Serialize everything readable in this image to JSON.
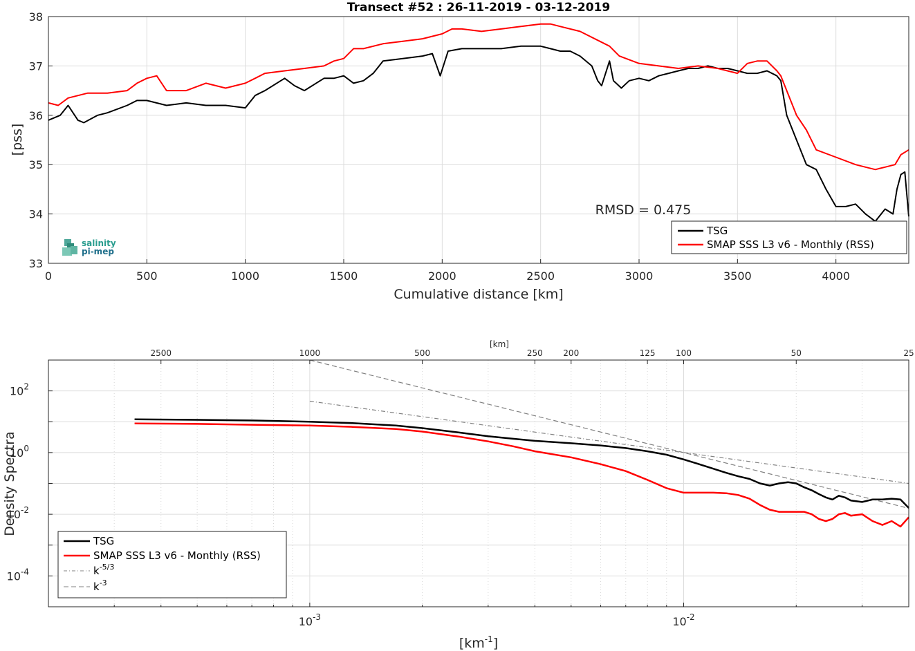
{
  "chart_data": [
    {
      "type": "line",
      "title": "Transect #52 : 26-11-2019 - 03-12-2019",
      "xlabel": "Cumulative distance [km]",
      "ylabel": "[pss]",
      "xlim": [
        0,
        4370
      ],
      "ylim": [
        33,
        38
      ],
      "xticks": [
        "0",
        "500",
        "1000",
        "1500",
        "2000",
        "2500",
        "3000",
        "3500",
        "4000"
      ],
      "yticks": [
        "33",
        "34",
        "35",
        "36",
        "37",
        "38"
      ],
      "grid": true,
      "legend_position": "bottom-right",
      "annotation": "RMSD = 0.475",
      "logo": {
        "line1": "salinity",
        "line2": "pi-mep"
      },
      "series": [
        {
          "name": "TSG",
          "color": "#000000",
          "x": [
            0,
            60,
            100,
            150,
            180,
            250,
            300,
            400,
            450,
            500,
            600,
            700,
            800,
            900,
            1000,
            1050,
            1100,
            1200,
            1250,
            1300,
            1400,
            1450,
            1500,
            1550,
            1600,
            1650,
            1700,
            1800,
            1900,
            1950,
            1990,
            2030,
            2100,
            2200,
            2300,
            2400,
            2500,
            2550,
            2600,
            2650,
            2700,
            2760,
            2790,
            2810,
            2850,
            2870,
            2910,
            2950,
            3000,
            3050,
            3100,
            3150,
            3200,
            3250,
            3300,
            3350,
            3400,
            3450,
            3500,
            3550,
            3600,
            3650,
            3700,
            3720,
            3750,
            3800,
            3850,
            3900,
            3950,
            4000,
            4050,
            4100,
            4150,
            4200,
            4250,
            4290,
            4310,
            4330,
            4350,
            4370
          ],
          "values": [
            35.9,
            36.0,
            36.2,
            35.9,
            35.85,
            36.0,
            36.05,
            36.2,
            36.3,
            36.3,
            36.2,
            36.25,
            36.2,
            36.2,
            36.15,
            36.4,
            36.5,
            36.75,
            36.6,
            36.5,
            36.75,
            36.75,
            36.8,
            36.65,
            36.7,
            36.85,
            37.1,
            37.15,
            37.2,
            37.25,
            36.8,
            37.3,
            37.35,
            37.35,
            37.35,
            37.4,
            37.4,
            37.35,
            37.3,
            37.3,
            37.2,
            37.0,
            36.7,
            36.6,
            37.1,
            36.7,
            36.55,
            36.7,
            36.75,
            36.7,
            36.8,
            36.85,
            36.9,
            36.95,
            36.95,
            37.0,
            36.95,
            36.95,
            36.9,
            36.85,
            36.85,
            36.9,
            36.8,
            36.7,
            36.0,
            35.5,
            35.0,
            34.9,
            34.5,
            34.15,
            34.15,
            34.2,
            34.0,
            33.85,
            34.1,
            34.0,
            34.5,
            34.8,
            34.85,
            33.95
          ]
        },
        {
          "name": "SMAP SSS L3 v6 - Monthly (RSS)",
          "color": "#ff0000",
          "x": [
            0,
            50,
            100,
            200,
            300,
            400,
            450,
            500,
            550,
            600,
            700,
            800,
            900,
            1000,
            1050,
            1100,
            1200,
            1300,
            1400,
            1450,
            1500,
            1550,
            1600,
            1700,
            1800,
            1900,
            2000,
            2050,
            2100,
            2200,
            2300,
            2400,
            2500,
            2550,
            2600,
            2700,
            2800,
            2850,
            2900,
            3000,
            3100,
            3200,
            3300,
            3400,
            3500,
            3550,
            3600,
            3650,
            3700,
            3720,
            3750,
            3800,
            3850,
            3900,
            4000,
            4100,
            4150,
            4200,
            4250,
            4300,
            4330,
            4370
          ],
          "values": [
            36.25,
            36.2,
            36.35,
            36.45,
            36.45,
            36.5,
            36.65,
            36.75,
            36.8,
            36.5,
            36.5,
            36.65,
            36.55,
            36.65,
            36.75,
            36.85,
            36.9,
            36.95,
            37.0,
            37.1,
            37.15,
            37.35,
            37.35,
            37.45,
            37.5,
            37.55,
            37.65,
            37.75,
            37.75,
            37.7,
            37.75,
            37.8,
            37.85,
            37.85,
            37.8,
            37.7,
            37.5,
            37.4,
            37.2,
            37.05,
            37.0,
            36.95,
            37.0,
            36.95,
            36.85,
            37.05,
            37.1,
            37.1,
            36.9,
            36.8,
            36.5,
            36.0,
            35.7,
            35.3,
            35.15,
            35.0,
            34.95,
            34.9,
            34.95,
            35.0,
            35.2,
            35.3
          ]
        }
      ]
    },
    {
      "type": "line",
      "xlabel": "[km-1]",
      "ylabel": "Density Spectra",
      "top_axis_label": "[km]",
      "top_ticks": [
        {
          "label": "2500",
          "k": 0.0004
        },
        {
          "label": "1000",
          "k": 0.001
        },
        {
          "label": "500",
          "k": 0.002
        },
        {
          "label": "250",
          "k": 0.004
        },
        {
          "label": "200",
          "k": 0.005
        },
        {
          "label": "125",
          "k": 0.008
        },
        {
          "label": "100",
          "k": 0.01
        },
        {
          "label": "50",
          "k": 0.02
        },
        {
          "label": "25",
          "k": 0.04
        }
      ],
      "xscale": "log",
      "yscale": "log",
      "xlim": [
        0.0002,
        0.04
      ],
      "ylim": [
        1e-05,
        1000
      ],
      "xticks": [
        {
          "base": "10",
          "exp": "-3",
          "value": 0.001
        },
        {
          "base": "10",
          "exp": "-2",
          "value": 0.01
        }
      ],
      "yticks": [
        {
          "base": "10",
          "exp": "-4",
          "value": 0.0001
        },
        {
          "base": "10",
          "exp": "-2",
          "value": 0.01
        },
        {
          "base": "10",
          "exp": "0",
          "value": 1
        },
        {
          "base": "10",
          "exp": "2",
          "value": 100
        }
      ],
      "grid": true,
      "legend_position": "bottom-left",
      "series": [
        {
          "name": "TSG",
          "color": "#000000",
          "style": "solid",
          "x": [
            0.00034,
            0.0005,
            0.0007,
            0.001,
            0.0013,
            0.0017,
            0.002,
            0.0025,
            0.003,
            0.0035,
            0.004,
            0.005,
            0.006,
            0.007,
            0.008,
            0.009,
            0.01,
            0.011,
            0.012,
            0.013,
            0.014,
            0.015,
            0.016,
            0.017,
            0.018,
            0.019,
            0.02,
            0.021,
            0.022,
            0.023,
            0.024,
            0.025,
            0.026,
            0.027,
            0.028,
            0.03,
            0.032,
            0.034,
            0.036,
            0.038,
            0.04
          ],
          "values": [
            12,
            11.5,
            11,
            10,
            9,
            7.5,
            6.2,
            4.5,
            3.4,
            2.8,
            2.4,
            2.0,
            1.7,
            1.4,
            1.1,
            0.85,
            0.6,
            0.42,
            0.3,
            0.22,
            0.17,
            0.14,
            0.1,
            0.085,
            0.1,
            0.11,
            0.1,
            0.075,
            0.06,
            0.045,
            0.035,
            0.03,
            0.04,
            0.035,
            0.028,
            0.025,
            0.03,
            0.03,
            0.032,
            0.03,
            0.016
          ]
        },
        {
          "name": "SMAP SSS L3 v6 - Monthly (RSS)",
          "color": "#ff0000",
          "style": "solid",
          "x": [
            0.00034,
            0.0005,
            0.0007,
            0.001,
            0.0013,
            0.0017,
            0.002,
            0.0025,
            0.003,
            0.0035,
            0.004,
            0.005,
            0.006,
            0.007,
            0.008,
            0.009,
            0.01,
            0.011,
            0.012,
            0.013,
            0.014,
            0.015,
            0.016,
            0.017,
            0.018,
            0.019,
            0.02,
            0.021,
            0.022,
            0.023,
            0.024,
            0.025,
            0.026,
            0.027,
            0.028,
            0.03,
            0.032,
            0.034,
            0.036,
            0.038,
            0.04
          ],
          "values": [
            8.8,
            8.5,
            8.0,
            7.5,
            6.8,
            5.8,
            4.8,
            3.3,
            2.3,
            1.6,
            1.1,
            0.7,
            0.42,
            0.25,
            0.13,
            0.07,
            0.05,
            0.05,
            0.05,
            0.048,
            0.042,
            0.032,
            0.02,
            0.014,
            0.012,
            0.012,
            0.012,
            0.012,
            0.01,
            0.007,
            0.006,
            0.007,
            0.01,
            0.011,
            0.009,
            0.01,
            0.006,
            0.0045,
            0.006,
            0.004,
            0.008
          ]
        },
        {
          "name": "k-5/3",
          "color": "#808080",
          "style": "dashdot",
          "x": [
            0.001,
            0.04
          ],
          "values": [
            46.4,
            0.0998
          ]
        },
        {
          "name": "k-3",
          "color": "#808080",
          "style": "dashed",
          "x": [
            0.001,
            0.04
          ],
          "values": [
            1000,
            0.0156
          ]
        }
      ]
    }
  ]
}
